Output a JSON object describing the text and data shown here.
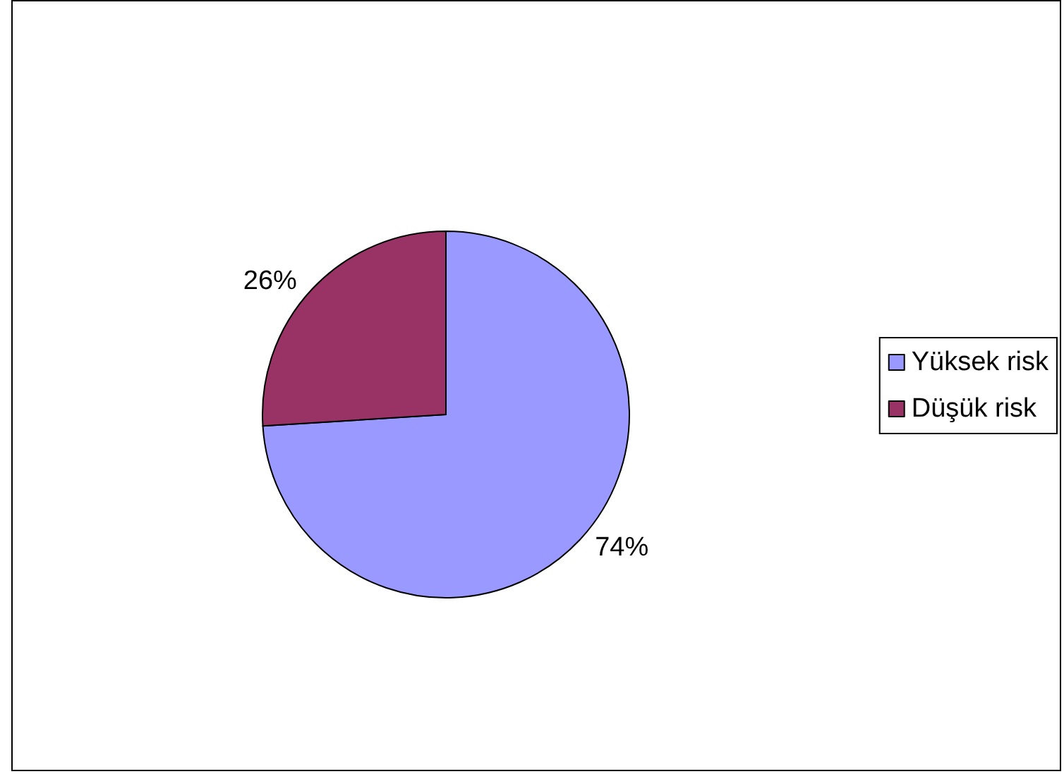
{
  "chart_data": {
    "type": "pie",
    "categories": [
      "Yüksek risk",
      "Düşük risk"
    ],
    "values": [
      74,
      26
    ],
    "colors": [
      "#9999ff",
      "#993366"
    ],
    "value_labels": [
      "74%",
      "26%"
    ],
    "legend": "right"
  }
}
